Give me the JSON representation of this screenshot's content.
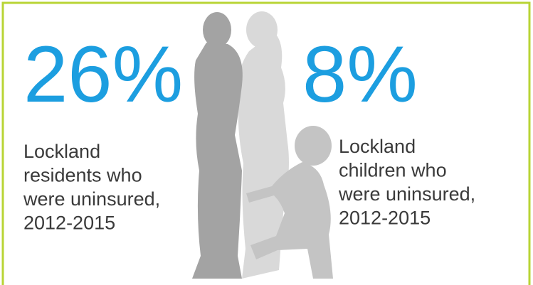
{
  "stats": [
    {
      "figure": "26%",
      "label_lines": [
        "Lockland",
        "residents who",
        "were uninsured,",
        "2012-2015"
      ]
    },
    {
      "figure": "8%",
      "label_lines": [
        "Lockland",
        "children who",
        "were uninsured,",
        "2012-2015"
      ]
    }
  ]
}
